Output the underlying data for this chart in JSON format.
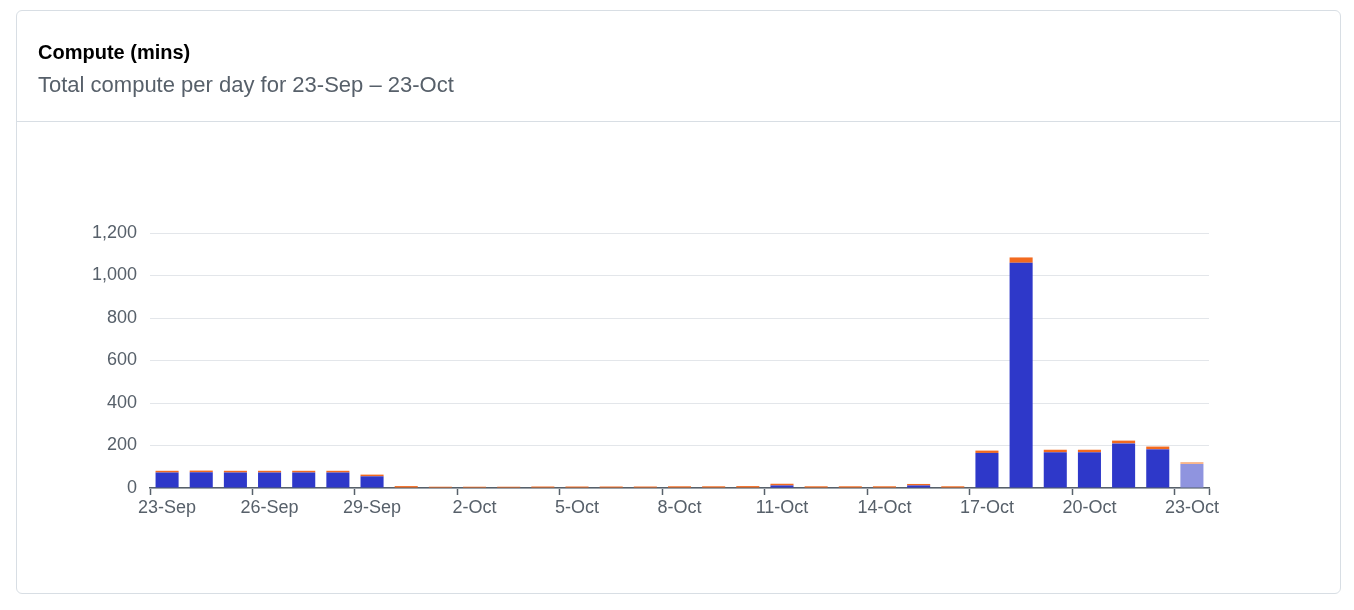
{
  "chart_data": {
    "type": "bar",
    "title": "Compute (mins)",
    "subtitle": "Total compute per day for 23-Sep – 23-Oct",
    "categories": [
      "23-Sep",
      null,
      null,
      "26-Sep",
      null,
      null,
      "29-Sep",
      null,
      null,
      "2-Oct",
      null,
      null,
      "5-Oct",
      null,
      null,
      "8-Oct",
      null,
      null,
      "11-Oct",
      null,
      null,
      "14-Oct",
      null,
      null,
      "17-Oct",
      null,
      null,
      "20-Oct",
      null,
      null,
      "23-Oct"
    ],
    "series": [
      {
        "colors": [
          "#2e38c9",
          "#2e38c9",
          "#2e38c9",
          "#2e38c9",
          "#2e38c9",
          "#2e38c9",
          "#2e38c9",
          "#2e38c9",
          "#2e38c9",
          "#2e38c9",
          "#2e38c9",
          "#2e38c9",
          "#2e38c9",
          "#2e38c9",
          "#2e38c9",
          "#2e38c9",
          "#2e38c9",
          "#2e38c9",
          "#2e38c9",
          "#2e38c9",
          "#2e38c9",
          "#2e38c9",
          "#2e38c9",
          "#2e38c9",
          "#2e38c9",
          "#2e38c9",
          "#2e38c9",
          "#2e38c9",
          "#2e38c9",
          "#2e38c9",
          "#8f94df"
        ],
        "values": [
          73,
          74,
          73,
          73,
          73,
          73,
          55,
          0,
          0,
          0,
          0,
          0,
          0,
          0,
          0,
          0,
          0,
          0,
          12,
          0,
          0,
          0,
          12,
          0,
          165,
          1060,
          168,
          168,
          210,
          182,
          113
        ]
      },
      {
        "colors": [
          "#f26a1f",
          "#f26a1f",
          "#f26a1f",
          "#f26a1f",
          "#f26a1f",
          "#f26a1f",
          "#f26a1f",
          "#f26a1f",
          "#f26a1f",
          "#f26a1f",
          "#f26a1f",
          "#f26a1f",
          "#f26a1f",
          "#f26a1f",
          "#f26a1f",
          "#f26a1f",
          "#f26a1f",
          "#f26a1f",
          "#f26a1f",
          "#f26a1f",
          "#f26a1f",
          "#f26a1f",
          "#f26a1f",
          "#f26a1f",
          "#f26a1f",
          "#f26a1f",
          "#f26a1f",
          "#f26a1f",
          "#f26a1f",
          "#f26a1f",
          "#f8b68c"
        ],
        "values": [
          8,
          8,
          8,
          8,
          8,
          8,
          8,
          9,
          6,
          6,
          6,
          7,
          7,
          7,
          7,
          8,
          8,
          9,
          8,
          8,
          8,
          8,
          7,
          8,
          11,
          25,
          12,
          12,
          13,
          13,
          9
        ]
      }
    ],
    "stacked": true,
    "ylim": [
      0,
      1200
    ],
    "yticks": [
      0,
      200,
      400,
      600,
      800,
      {
        "value": 1000,
        "label": "1,000"
      },
      {
        "value": 1200,
        "label": "1,200"
      }
    ],
    "grid": "y"
  }
}
